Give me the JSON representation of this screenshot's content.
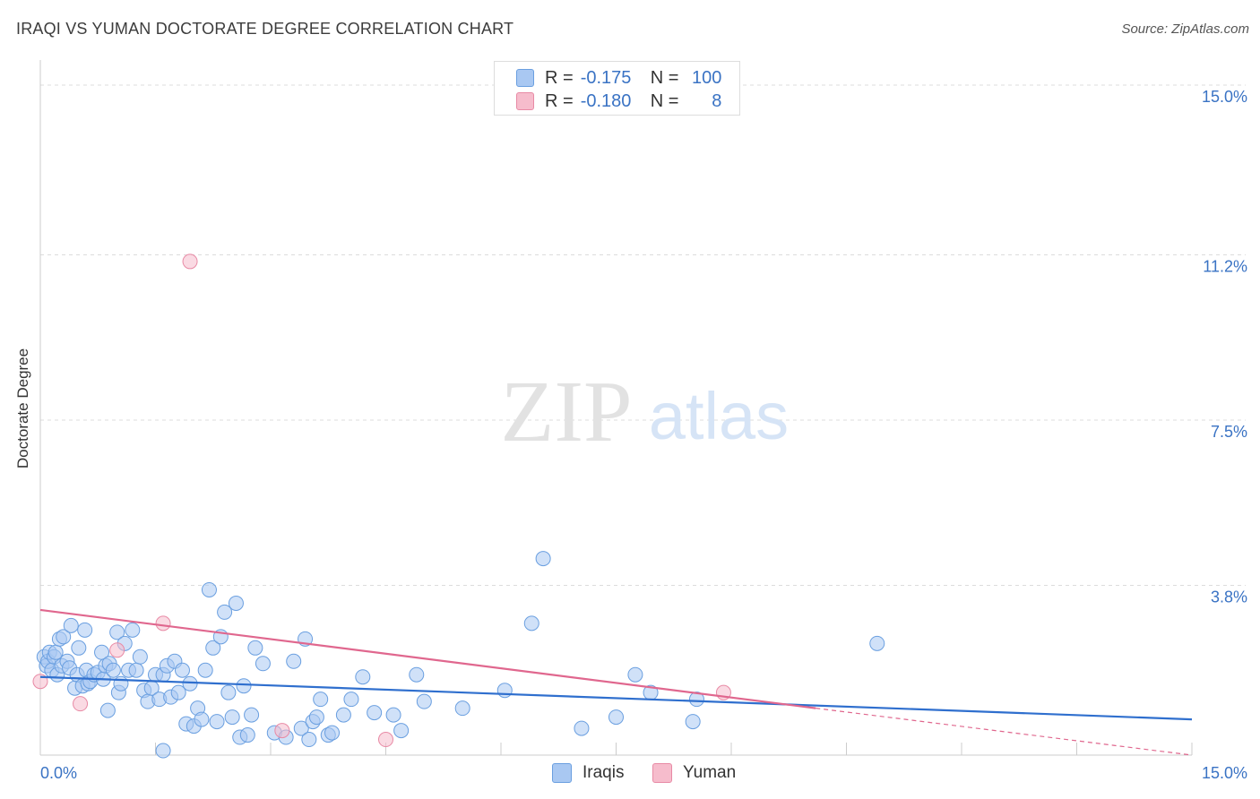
{
  "title": "IRAQI VS YUMAN DOCTORATE DEGREE CORRELATION CHART",
  "source": "Source: ZipAtlas.com",
  "watermark": {
    "zip": "ZIP",
    "atlas": "atlas"
  },
  "legend": {
    "rows": [
      {
        "r_label": "R =",
        "r_value": "-0.175",
        "n_label": "N =",
        "n_value": "100",
        "color": "#a9c8f2",
        "border": "#6a9fe0"
      },
      {
        "r_label": "R =",
        "r_value": "-0.180",
        "n_label": "N =",
        "n_value": "8",
        "color": "#f6bccc",
        "border": "#e88aa5"
      }
    ]
  },
  "bottom_legend": [
    {
      "label": "Iraqis",
      "color": "#a9c8f2",
      "border": "#6a9fe0"
    },
    {
      "label": "Yuman",
      "color": "#f6bccc",
      "border": "#e88aa5"
    }
  ],
  "chart_data": {
    "type": "scatter",
    "title": "IRAQI VS YUMAN DOCTORATE DEGREE CORRELATION CHART",
    "xlabel": "",
    "ylabel": "Doctorate Degree",
    "xlim": [
      0,
      15
    ],
    "ylim": [
      0,
      15.4
    ],
    "x_tick_labels": [
      "0.0%",
      "15.0%"
    ],
    "y_ticks": [
      3.8,
      7.5,
      11.2,
      15.0
    ],
    "y_tick_labels": [
      "3.8%",
      "7.5%",
      "11.2%",
      "15.0%"
    ],
    "series": [
      {
        "name": "Iraqis",
        "color": "#6a9fe0",
        "fill": "#a9c8f2",
        "trend_line": {
          "x0": 0,
          "y0": 1.75,
          "x1": 15,
          "y1": 0.8,
          "color": "#2f6fce"
        },
        "points": [
          [
            0.05,
            2.2
          ],
          [
            0.08,
            2.0
          ],
          [
            0.1,
            2.1
          ],
          [
            0.12,
            2.3
          ],
          [
            0.15,
            1.9
          ],
          [
            0.18,
            2.2
          ],
          [
            0.2,
            2.3
          ],
          [
            0.22,
            1.8
          ],
          [
            0.25,
            2.6
          ],
          [
            0.28,
            2.0
          ],
          [
            0.3,
            2.65
          ],
          [
            0.35,
            2.1
          ],
          [
            0.38,
            1.95
          ],
          [
            0.4,
            2.9
          ],
          [
            0.45,
            1.5
          ],
          [
            0.48,
            1.8
          ],
          [
            0.5,
            2.4
          ],
          [
            0.55,
            1.55
          ],
          [
            0.58,
            2.8
          ],
          [
            0.6,
            1.9
          ],
          [
            0.62,
            1.6
          ],
          [
            0.65,
            1.65
          ],
          [
            0.7,
            1.8
          ],
          [
            0.75,
            1.85
          ],
          [
            0.8,
            2.3
          ],
          [
            0.82,
            1.7
          ],
          [
            0.85,
            2.0
          ],
          [
            0.88,
            1.0
          ],
          [
            0.9,
            2.05
          ],
          [
            0.95,
            1.9
          ],
          [
            1.0,
            2.75
          ],
          [
            1.02,
            1.4
          ],
          [
            1.05,
            1.6
          ],
          [
            1.1,
            2.5
          ],
          [
            1.15,
            1.9
          ],
          [
            1.2,
            2.8
          ],
          [
            1.25,
            1.9
          ],
          [
            1.3,
            2.2
          ],
          [
            1.35,
            1.45
          ],
          [
            1.4,
            1.2
          ],
          [
            1.45,
            1.5
          ],
          [
            1.5,
            1.8
          ],
          [
            1.55,
            1.25
          ],
          [
            1.6,
            1.8
          ],
          [
            1.65,
            2.0
          ],
          [
            1.7,
            1.3
          ],
          [
            1.75,
            2.1
          ],
          [
            1.8,
            1.4
          ],
          [
            1.85,
            1.9
          ],
          [
            1.9,
            0.7
          ],
          [
            1.95,
            1.6
          ],
          [
            2.0,
            0.65
          ],
          [
            2.05,
            1.05
          ],
          [
            2.1,
            0.8
          ],
          [
            2.15,
            1.9
          ],
          [
            2.2,
            3.7
          ],
          [
            2.25,
            2.4
          ],
          [
            2.3,
            0.75
          ],
          [
            2.35,
            2.65
          ],
          [
            2.4,
            3.2
          ],
          [
            2.45,
            1.4
          ],
          [
            2.5,
            0.85
          ],
          [
            2.55,
            3.4
          ],
          [
            2.6,
            0.4
          ],
          [
            2.65,
            1.55
          ],
          [
            2.7,
            0.45
          ],
          [
            2.75,
            0.9
          ],
          [
            2.8,
            2.4
          ],
          [
            2.9,
            2.05
          ],
          [
            3.05,
            0.5
          ],
          [
            3.2,
            0.4
          ],
          [
            3.3,
            2.1
          ],
          [
            3.4,
            0.6
          ],
          [
            3.45,
            2.6
          ],
          [
            3.5,
            0.35
          ],
          [
            3.55,
            0.75
          ],
          [
            3.6,
            0.85
          ],
          [
            3.65,
            1.25
          ],
          [
            3.75,
            0.45
          ],
          [
            3.8,
            0.5
          ],
          [
            3.95,
            0.9
          ],
          [
            4.05,
            1.25
          ],
          [
            4.2,
            1.75
          ],
          [
            4.35,
            0.95
          ],
          [
            4.6,
            0.9
          ],
          [
            4.7,
            0.55
          ],
          [
            4.9,
            1.8
          ],
          [
            5.0,
            1.2
          ],
          [
            5.5,
            1.05
          ],
          [
            6.05,
            1.45
          ],
          [
            6.4,
            2.95
          ],
          [
            6.55,
            4.4
          ],
          [
            7.05,
            0.6
          ],
          [
            7.5,
            0.85
          ],
          [
            7.75,
            1.8
          ],
          [
            7.95,
            1.4
          ],
          [
            8.5,
            0.75
          ],
          [
            8.55,
            1.25
          ],
          [
            10.9,
            2.5
          ],
          [
            1.6,
            0.1
          ]
        ]
      },
      {
        "name": "Yuman",
        "color": "#e88aa5",
        "fill": "#f6bccc",
        "trend_line": {
          "x0": 0,
          "y0": 3.25,
          "x1": 10.1,
          "y1": 1.05,
          "color": "#e0678e",
          "dashed_extension_to": [
            15,
            0.0
          ]
        },
        "points": [
          [
            0.0,
            1.65
          ],
          [
            0.52,
            1.15
          ],
          [
            1.0,
            2.35
          ],
          [
            1.6,
            2.95
          ],
          [
            1.95,
            11.05
          ],
          [
            3.15,
            0.55
          ],
          [
            4.5,
            0.35
          ],
          [
            8.9,
            1.4
          ]
        ]
      }
    ]
  }
}
